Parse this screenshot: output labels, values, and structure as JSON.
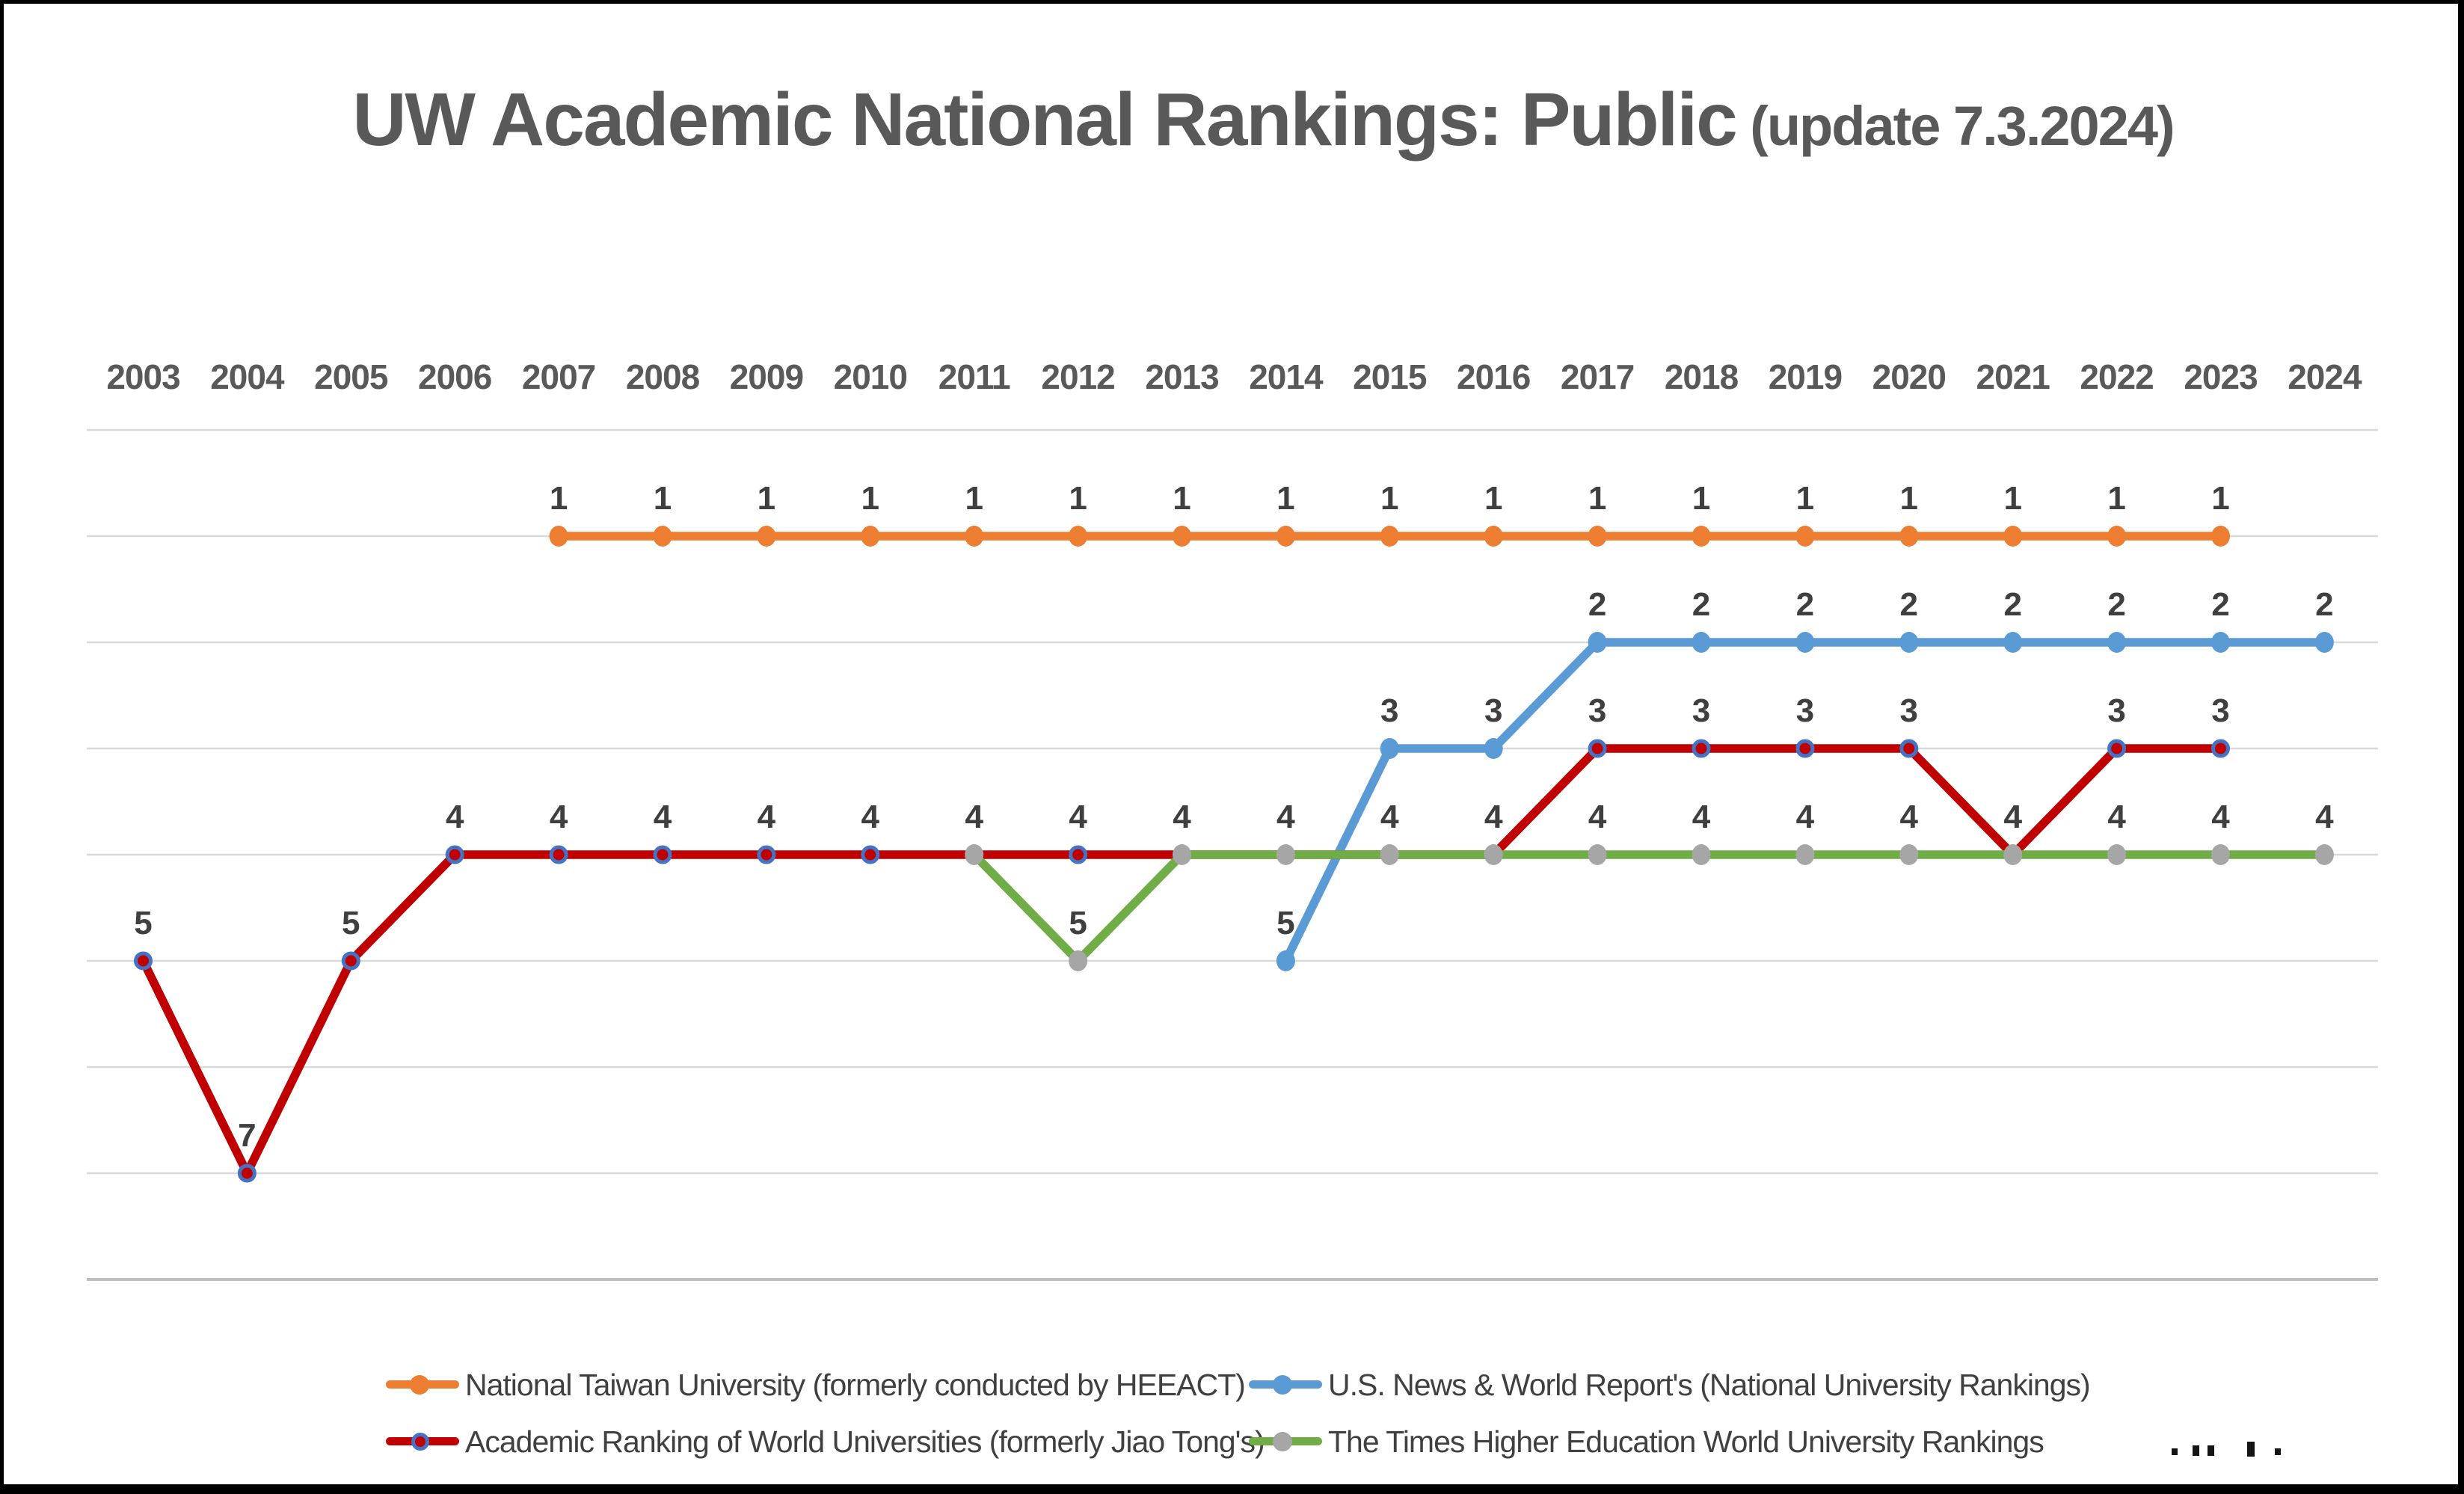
{
  "title": {
    "main": "UW Academic National Rankings: Public",
    "update": "(update 7.3.2024)"
  },
  "chart_data": {
    "type": "line",
    "title": "UW Academic National Rankings: Public (update 7.3.2024)",
    "x": [
      2003,
      2004,
      2005,
      2006,
      2007,
      2008,
      2009,
      2010,
      2011,
      2012,
      2013,
      2014,
      2015,
      2016,
      2017,
      2018,
      2019,
      2020,
      2021,
      2022,
      2023,
      2024
    ],
    "y_axis": {
      "min": 0,
      "max": 8,
      "inverted": true,
      "gridline_values": [
        0,
        1,
        2,
        3,
        4,
        5,
        6,
        7,
        8
      ],
      "tick_labels_visible": false,
      "grid": true
    },
    "data_labels_position": "above",
    "legend_position": "bottom",
    "series": [
      {
        "name": "National Taiwan University (formerly conducted by HEEACT)",
        "line_color": "#ED7D31",
        "marker_style": "solid",
        "marker_fill": "#ED7D31",
        "values": [
          null,
          null,
          null,
          null,
          1,
          1,
          1,
          1,
          1,
          1,
          1,
          1,
          1,
          1,
          1,
          1,
          1,
          1,
          1,
          1,
          1,
          null
        ]
      },
      {
        "name": "U.S. News & World Report's (National University Rankings)",
        "line_color": "#5B9BD5",
        "marker_style": "solid",
        "marker_fill": "#5B9BD5",
        "values": [
          null,
          null,
          null,
          null,
          null,
          null,
          null,
          null,
          null,
          null,
          null,
          5,
          3,
          3,
          2,
          2,
          2,
          2,
          2,
          2,
          2,
          2
        ]
      },
      {
        "name": "Academic Ranking of World Universities (formerly Jiao Tong's)",
        "line_color": "#C00000",
        "marker_style": "ring",
        "marker_fill": "#C00000",
        "marker_ring": "#4472C4",
        "values": [
          5,
          7,
          5,
          4,
          4,
          4,
          4,
          4,
          4,
          4,
          4,
          4,
          4,
          4,
          3,
          3,
          3,
          3,
          4,
          3,
          3,
          null
        ]
      },
      {
        "name": "The Times Higher Education World University Rankings",
        "line_color": "#70AD47",
        "marker_style": "solid",
        "marker_fill": "#A6A6A6",
        "values": [
          null,
          null,
          null,
          null,
          null,
          null,
          null,
          null,
          4,
          5,
          4,
          4,
          4,
          4,
          4,
          4,
          4,
          4,
          4,
          4,
          4,
          4
        ]
      }
    ]
  },
  "legend": {
    "items": [
      {
        "label": "National Taiwan University (formerly conducted by HEEACT)",
        "line_color": "#ED7D31",
        "marker_color": "#ED7D31"
      },
      {
        "label": "U.S. News & World Report's (National University Rankings)",
        "line_color": "#5B9BD5",
        "marker_color": "#5B9BD5"
      },
      {
        "label": "Academic Ranking of World Universities (formerly Jiao Tong's)",
        "line_color": "#C00000",
        "marker_color": "#C00000",
        "marker_ring": "#4472C4"
      },
      {
        "label": "The Times Higher Education World University Rankings",
        "line_color": "#70AD47",
        "marker_color": "#A6A6A6"
      }
    ]
  },
  "colors": {
    "title_text": "#595959",
    "axis_text": "#595959",
    "data_label_text": "#3F3F3F",
    "gridline": "#D9D9D9",
    "gridline_bottom": "#BFBFBF",
    "frame": "#000000"
  }
}
